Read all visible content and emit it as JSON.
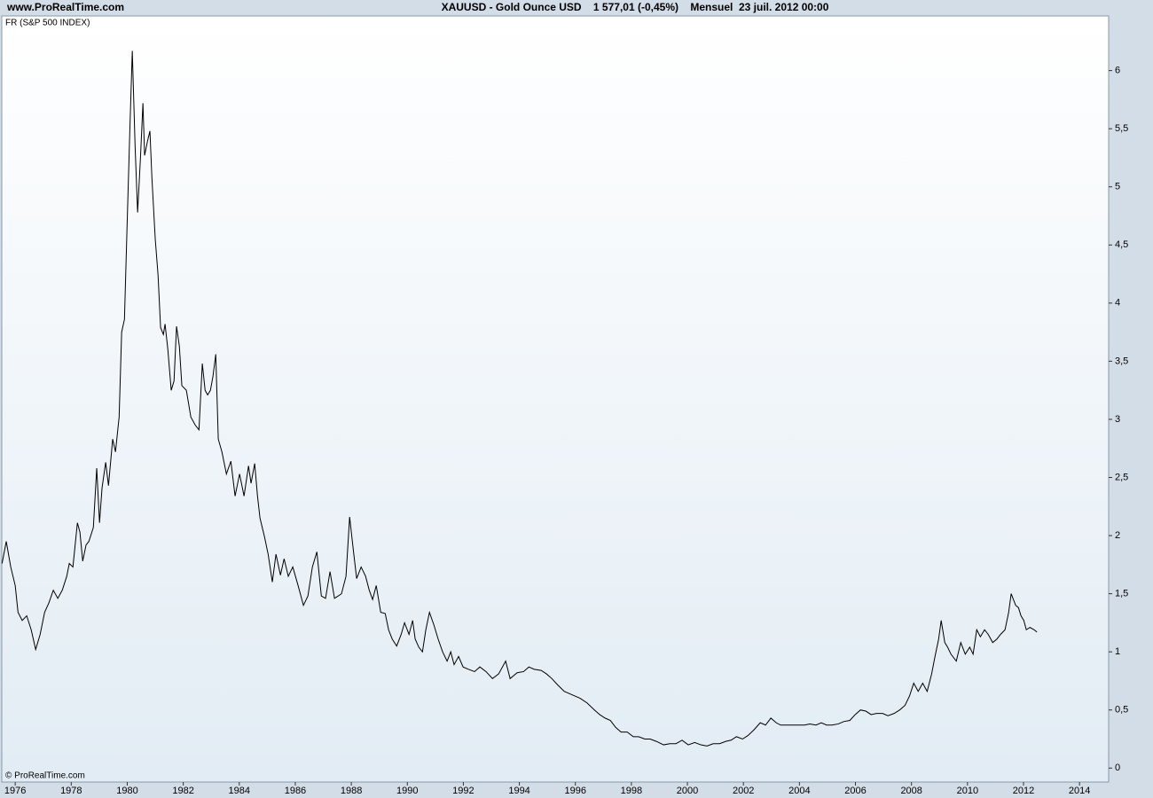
{
  "chart_data": {
    "type": "line",
    "site": "www.ProRealTime.com",
    "title": "XAUUSD - Gold Ounce USD    1 577,01 (-0,45%)    Mensuel  23 juil. 2012 00:00",
    "watermark": "© ProRealTime.com",
    "xlim": [
      1975.52,
      2015.04
    ],
    "ylim": [
      -0.12,
      6.47
    ],
    "xticks": [
      1976,
      1978,
      1980,
      1982,
      1984,
      1986,
      1988,
      1990,
      1992,
      1994,
      1996,
      1998,
      2000,
      2002,
      2004,
      2006,
      2008,
      2010,
      2012,
      2014
    ],
    "yticks": [
      0,
      {
        "value": 0.5,
        "label": "0,5"
      },
      1,
      {
        "value": 1.5,
        "label": "1,5"
      },
      2,
      {
        "value": 2.5,
        "label": "2,5"
      },
      3,
      {
        "value": 3.5,
        "label": "3,5"
      },
      4,
      {
        "value": 4.5,
        "label": "4,5"
      },
      5,
      {
        "value": 5.5,
        "label": "5,5"
      },
      6
    ],
    "x": [
      1975.53,
      1975.68,
      1975.84,
      1976.0,
      1976.1,
      1976.25,
      1976.41,
      1976.57,
      1976.73,
      1976.89,
      1977.05,
      1977.2,
      1977.36,
      1977.52,
      1977.68,
      1977.84,
      1977.93,
      1978.06,
      1978.22,
      1978.31,
      1978.41,
      1978.53,
      1978.63,
      1978.79,
      1978.91,
      1979.01,
      1979.1,
      1979.23,
      1979.33,
      1979.48,
      1979.58,
      1979.71,
      1979.8,
      1979.9,
      1979.99,
      1980.09,
      1980.18,
      1980.28,
      1980.37,
      1980.47,
      1980.56,
      1980.62,
      1980.72,
      1980.81,
      1980.88,
      1981.0,
      1981.1,
      1981.19,
      1981.29,
      1981.35,
      1981.45,
      1981.57,
      1981.67,
      1981.76,
      1981.86,
      1981.95,
      1982.11,
      1982.27,
      1982.43,
      1982.56,
      1982.68,
      1982.78,
      1982.87,
      1982.97,
      1983.06,
      1983.16,
      1983.25,
      1983.38,
      1983.54,
      1983.7,
      1983.85,
      1984.01,
      1984.17,
      1984.33,
      1984.42,
      1984.55,
      1984.65,
      1984.74,
      1984.9,
      1985.03,
      1985.18,
      1985.31,
      1985.47,
      1985.6,
      1985.75,
      1985.91,
      1986.1,
      1986.29,
      1986.45,
      1986.61,
      1986.77,
      1986.93,
      1987.08,
      1987.24,
      1987.4,
      1987.53,
      1987.65,
      1987.81,
      1987.94,
      1988.07,
      1988.19,
      1988.35,
      1988.51,
      1988.64,
      1988.76,
      1988.89,
      1989.05,
      1989.21,
      1989.33,
      1989.46,
      1989.62,
      1989.78,
      1989.9,
      1990.06,
      1990.19,
      1990.28,
      1990.41,
      1990.54,
      1990.66,
      1990.79,
      1990.95,
      1991.1,
      1991.26,
      1991.42,
      1991.55,
      1991.67,
      1991.83,
      1991.99,
      1992.18,
      1992.4,
      1992.59,
      1992.81,
      1993.04,
      1993.26,
      1993.51,
      1993.67,
      1993.92,
      1994.15,
      1994.34,
      1994.53,
      1994.78,
      1994.97,
      1995.16,
      1995.35,
      1995.6,
      1995.89,
      1996.17,
      1996.42,
      1996.68,
      1996.87,
      1997.06,
      1997.25,
      1997.44,
      1997.63,
      1997.85,
      1998.07,
      1998.26,
      1998.48,
      1998.67,
      1998.89,
      1999.15,
      1999.37,
      1999.59,
      1999.81,
      2000.03,
      2000.26,
      2000.48,
      2000.7,
      2000.92,
      2001.15,
      2001.37,
      2001.56,
      2001.75,
      2001.97,
      2002.16,
      2002.38,
      2002.6,
      2002.79,
      2002.98,
      2003.17,
      2003.33,
      2003.55,
      2003.77,
      2003.96,
      2004.18,
      2004.37,
      2004.59,
      2004.78,
      2004.97,
      2005.16,
      2005.39,
      2005.58,
      2005.8,
      2005.99,
      2006.18,
      2006.37,
      2006.56,
      2006.75,
      2006.97,
      2007.16,
      2007.38,
      2007.58,
      2007.77,
      2007.93,
      2008.08,
      2008.24,
      2008.4,
      2008.56,
      2008.72,
      2008.84,
      2008.97,
      2009.06,
      2009.19,
      2009.29,
      2009.41,
      2009.6,
      2009.76,
      2009.92,
      2010.08,
      2010.2,
      2010.33,
      2010.46,
      2010.61,
      2010.74,
      2010.9,
      2011.05,
      2011.18,
      2011.34,
      2011.47,
      2011.56,
      2011.72,
      2011.82,
      2011.91,
      2012.01,
      2012.1,
      2012.23,
      2012.38,
      2012.48
    ],
    "series": [
      {
        "name": "FR (S&P 500 INDEX)",
        "color": "#000000",
        "values": [
          1.76,
          1.95,
          1.73,
          1.57,
          1.34,
          1.27,
          1.31,
          1.19,
          1.02,
          1.15,
          1.34,
          1.42,
          1.53,
          1.46,
          1.53,
          1.65,
          1.76,
          1.73,
          2.11,
          2.03,
          1.78,
          1.92,
          1.95,
          2.07,
          2.58,
          2.11,
          2.41,
          2.63,
          2.43,
          2.83,
          2.72,
          3.02,
          3.75,
          3.86,
          4.63,
          5.47,
          6.17,
          5.35,
          4.78,
          5.24,
          5.72,
          5.27,
          5.39,
          5.48,
          5.08,
          4.55,
          4.24,
          3.79,
          3.73,
          3.82,
          3.6,
          3.25,
          3.33,
          3.8,
          3.63,
          3.29,
          3.25,
          3.02,
          2.95,
          2.91,
          3.48,
          3.25,
          3.21,
          3.25,
          3.37,
          3.56,
          2.83,
          2.72,
          2.53,
          2.64,
          2.34,
          2.53,
          2.34,
          2.6,
          2.45,
          2.62,
          2.34,
          2.15,
          1.99,
          1.84,
          1.6,
          1.84,
          1.66,
          1.8,
          1.65,
          1.73,
          1.57,
          1.4,
          1.48,
          1.73,
          1.86,
          1.48,
          1.46,
          1.69,
          1.46,
          1.48,
          1.5,
          1.65,
          2.16,
          1.88,
          1.63,
          1.73,
          1.65,
          1.53,
          1.45,
          1.57,
          1.34,
          1.33,
          1.19,
          1.11,
          1.05,
          1.15,
          1.25,
          1.15,
          1.27,
          1.11,
          1.04,
          1.0,
          1.19,
          1.34,
          1.23,
          1.11,
          1.0,
          0.92,
          1.0,
          0.89,
          0.96,
          0.87,
          0.85,
          0.83,
          0.87,
          0.83,
          0.77,
          0.81,
          0.92,
          0.77,
          0.82,
          0.83,
          0.87,
          0.85,
          0.84,
          0.81,
          0.77,
          0.72,
          0.66,
          0.63,
          0.6,
          0.56,
          0.5,
          0.46,
          0.43,
          0.41,
          0.35,
          0.31,
          0.31,
          0.27,
          0.27,
          0.25,
          0.25,
          0.23,
          0.2,
          0.21,
          0.21,
          0.24,
          0.2,
          0.22,
          0.2,
          0.19,
          0.21,
          0.21,
          0.23,
          0.24,
          0.27,
          0.25,
          0.28,
          0.33,
          0.39,
          0.37,
          0.43,
          0.39,
          0.37,
          0.37,
          0.37,
          0.37,
          0.37,
          0.38,
          0.37,
          0.39,
          0.37,
          0.37,
          0.38,
          0.4,
          0.41,
          0.46,
          0.5,
          0.49,
          0.46,
          0.47,
          0.47,
          0.45,
          0.47,
          0.5,
          0.54,
          0.62,
          0.73,
          0.66,
          0.73,
          0.66,
          0.81,
          0.96,
          1.11,
          1.27,
          1.08,
          1.04,
          0.98,
          0.92,
          1.08,
          0.98,
          1.04,
          0.98,
          1.19,
          1.13,
          1.19,
          1.15,
          1.08,
          1.11,
          1.15,
          1.19,
          1.34,
          1.5,
          1.4,
          1.38,
          1.31,
          1.27,
          1.19,
          1.21,
          1.19,
          1.17
        ]
      }
    ]
  }
}
